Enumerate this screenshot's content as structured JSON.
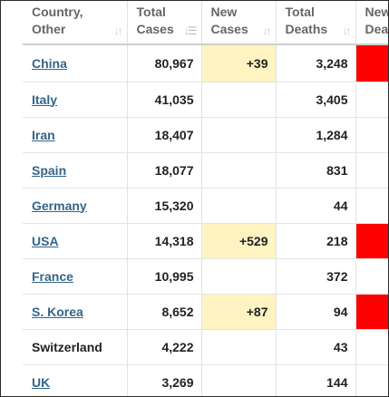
{
  "columns": [
    {
      "label_line1": "Country,",
      "label_line2": "Other",
      "sort_icon": "sort-both-icon"
    },
    {
      "label_line1": "Total",
      "label_line2": "Cases",
      "sort_icon": "sort-desc-icon"
    },
    {
      "label_line1": "New",
      "label_line2": "Cases",
      "sort_icon": "sort-both-icon"
    },
    {
      "label_line1": "Total",
      "label_line2": "Deaths",
      "sort_icon": "sort-both-icon"
    },
    {
      "label_line1": "New",
      "label_line2": "Deat",
      "sort_icon": ""
    }
  ],
  "rows": [
    {
      "country": "China",
      "is_link": true,
      "total_cases": "80,967",
      "new_cases": "+39",
      "total_deaths": "3,248",
      "new_deaths_flag": true
    },
    {
      "country": "Italy",
      "is_link": true,
      "total_cases": "41,035",
      "new_cases": "",
      "total_deaths": "3,405",
      "new_deaths_flag": false
    },
    {
      "country": "Iran",
      "is_link": true,
      "total_cases": "18,407",
      "new_cases": "",
      "total_deaths": "1,284",
      "new_deaths_flag": false
    },
    {
      "country": "Spain",
      "is_link": true,
      "total_cases": "18,077",
      "new_cases": "",
      "total_deaths": "831",
      "new_deaths_flag": false
    },
    {
      "country": "Germany",
      "is_link": true,
      "total_cases": "15,320",
      "new_cases": "",
      "total_deaths": "44",
      "new_deaths_flag": false
    },
    {
      "country": "USA",
      "is_link": true,
      "total_cases": "14,318",
      "new_cases": "+529",
      "total_deaths": "218",
      "new_deaths_flag": true
    },
    {
      "country": "France",
      "is_link": true,
      "total_cases": "10,995",
      "new_cases": "",
      "total_deaths": "372",
      "new_deaths_flag": false
    },
    {
      "country": "S. Korea",
      "is_link": true,
      "total_cases": "8,652",
      "new_cases": "+87",
      "total_deaths": "94",
      "new_deaths_flag": true
    },
    {
      "country": "Switzerland",
      "is_link": false,
      "total_cases": "4,222",
      "new_cases": "",
      "total_deaths": "43",
      "new_deaths_flag": false
    },
    {
      "country": "UK",
      "is_link": true,
      "total_cases": "3,269",
      "new_cases": "",
      "total_deaths": "144",
      "new_deaths_flag": false
    }
  ],
  "colors": {
    "link": "#33658a",
    "new_cases_highlight": "#fff3c1",
    "new_deaths_highlight": "#ff0000",
    "header_text": "#666666"
  }
}
